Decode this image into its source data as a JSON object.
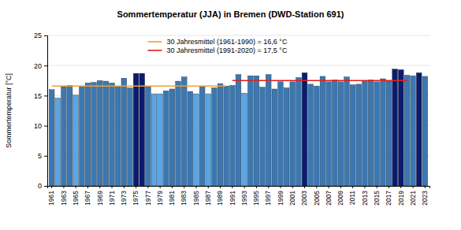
{
  "chart_data": {
    "type": "bar",
    "title": "Sommertemperatur (JJA) in Bremen (DWD-Station 691)",
    "y_label": "Sommertemperatur [°C]",
    "categories": [
      "1961",
      null,
      "1963",
      null,
      "1965",
      null,
      "1967",
      null,
      "1969",
      null,
      "1971",
      null,
      "1973",
      null,
      "1975",
      null,
      "1977",
      null,
      "1979",
      null,
      "1981",
      null,
      "1983",
      null,
      "1985",
      null,
      "1987",
      null,
      "1989",
      null,
      "1991",
      null,
      "1993",
      null,
      "1995",
      null,
      "1997",
      null,
      "1999",
      null,
      "2001",
      null,
      "2003",
      null,
      "2005",
      null,
      "2007",
      null,
      "2009",
      null,
      "2011",
      null,
      "2013",
      null,
      "2015",
      null,
      "2017",
      null,
      "2019",
      null,
      "2021",
      null,
      "2023"
    ],
    "values": [
      16.0,
      14.6,
      16.5,
      16.7,
      15.1,
      16.6,
      17.1,
      17.2,
      17.5,
      17.4,
      17.1,
      16.6,
      17.9,
      16.3,
      18.7,
      18.7,
      16.6,
      15.3,
      15.3,
      15.8,
      16.1,
      17.4,
      18.1,
      15.7,
      15.3,
      16.6,
      15.3,
      16.3,
      17.0,
      16.6,
      16.7,
      18.5,
      15.4,
      18.3,
      18.3,
      16.4,
      18.5,
      16.1,
      17.3,
      16.3,
      17.3,
      18.0,
      18.8,
      16.9,
      16.6,
      18.2,
      17.3,
      17.6,
      17.3,
      18.1,
      16.8,
      16.9,
      17.5,
      17.6,
      17.3,
      17.8,
      17.4,
      19.4,
      19.3,
      18.4,
      18.3,
      18.8,
      18.2
    ],
    "colors": [
      "#3b78b2",
      "#5aa6e6",
      "#3b78b2",
      "#3b78b2",
      "#5aa6e6",
      "#3b78b2",
      "#3b78b2",
      "#3b78b2",
      "#3b78b2",
      "#3b78b2",
      "#3b78b2",
      "#3b78b2",
      "#3b78b2",
      "#3b78b2",
      "#0b1c6e",
      "#0b1c6e",
      "#3b78b2",
      "#5aa6e6",
      "#5aa6e6",
      "#3b78b2",
      "#3b78b2",
      "#3b78b2",
      "#3b78b2",
      "#3b78b2",
      "#5aa6e6",
      "#3b78b2",
      "#5aa6e6",
      "#3b78b2",
      "#3b78b2",
      "#3b78b2",
      "#3b78b2",
      "#3b78b2",
      "#5aa6e6",
      "#3b78b2",
      "#3b78b2",
      "#3b78b2",
      "#3b78b2",
      "#3b78b2",
      "#3b78b2",
      "#3b78b2",
      "#3b78b2",
      "#3b78b2",
      "#0b1c6e",
      "#3b78b2",
      "#3b78b2",
      "#3b78b2",
      "#3b78b2",
      "#3b78b2",
      "#3b78b2",
      "#3b78b2",
      "#3b78b2",
      "#3b78b2",
      "#3b78b2",
      "#3b78b2",
      "#3b78b2",
      "#3b78b2",
      "#3b78b2",
      "#0b1c6e",
      "#0b1c6e",
      "#3b78b2",
      "#3b78b2",
      "#0b1c6e",
      "#3b78b2"
    ],
    "series": [
      {
        "name": "30 Jahresmittel (1961-1990) = 16,6 °C",
        "type": "line",
        "color": "#f0a030",
        "values": [
          16.6,
          16.6,
          16.6,
          16.6,
          16.6,
          16.6,
          16.6,
          16.6,
          16.6,
          16.6,
          16.6,
          16.6,
          16.6,
          16.6,
          16.6,
          16.6,
          16.6,
          16.6,
          16.6,
          16.6,
          16.6,
          16.6,
          16.6,
          16.6,
          16.6,
          16.6,
          16.6,
          16.6,
          16.6,
          16.6,
          null,
          null,
          null,
          null,
          null,
          null,
          null,
          null,
          null,
          null,
          null,
          null,
          null,
          null,
          null,
          null,
          null,
          null,
          null,
          null,
          null,
          null,
          null,
          null,
          null,
          null,
          null,
          null,
          null,
          null,
          null,
          null,
          null
        ]
      },
      {
        "name": "30 Jahresmittel (1991-2020) = 17,5 °C",
        "type": "line",
        "color": "#e0201c",
        "values": [
          null,
          null,
          null,
          null,
          null,
          null,
          null,
          null,
          null,
          null,
          null,
          null,
          null,
          null,
          null,
          null,
          null,
          null,
          null,
          null,
          null,
          null,
          null,
          null,
          null,
          null,
          null,
          null,
          null,
          null,
          17.5,
          17.5,
          17.5,
          17.5,
          17.5,
          17.5,
          17.5,
          17.5,
          17.5,
          17.5,
          17.5,
          17.5,
          17.5,
          17.5,
          17.5,
          17.5,
          17.5,
          17.5,
          17.5,
          17.5,
          17.5,
          17.5,
          17.5,
          17.5,
          17.5,
          17.5,
          17.5,
          17.5,
          17.5,
          17.5,
          null,
          null,
          null
        ]
      }
    ],
    "ylim": [
      0,
      25
    ],
    "yticks": [
      0,
      5,
      10,
      15,
      20,
      25
    ],
    "grid": true,
    "legend": "top"
  }
}
